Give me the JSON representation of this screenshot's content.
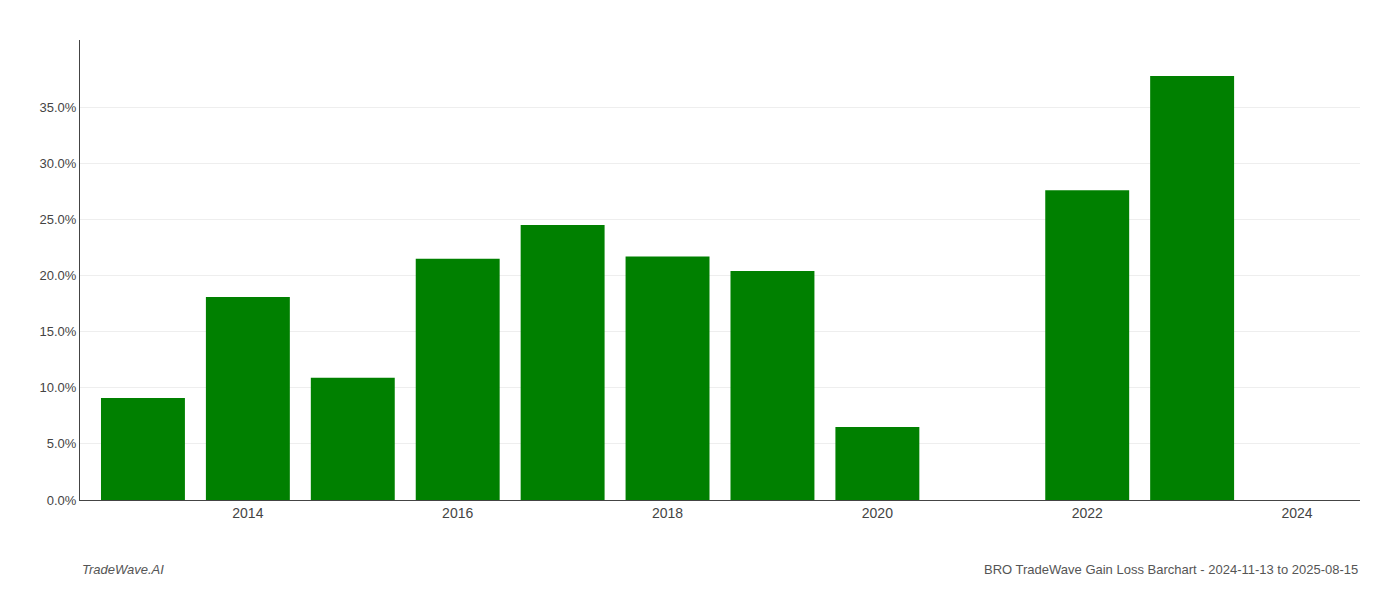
{
  "chart_data": {
    "type": "bar",
    "x": [
      2013,
      2014,
      2015,
      2016,
      2017,
      2018,
      2019,
      2020,
      2022,
      2023
    ],
    "values": [
      0.091,
      0.181,
      0.109,
      0.215,
      0.245,
      0.217,
      0.204,
      0.065,
      0.276,
      0.378
    ],
    "color": "#008000",
    "xlim": [
      2012.4,
      2024.6
    ],
    "xticks": [
      2014,
      2016,
      2018,
      2020,
      2022,
      2024
    ],
    "ylim": [
      0,
      0.41
    ],
    "yticks": [
      {
        "value": 0.0,
        "label": "0.0%"
      },
      {
        "value": 0.05,
        "label": "5.0%"
      },
      {
        "value": 0.1,
        "label": "10.0%"
      },
      {
        "value": 0.15,
        "label": "15.0%"
      },
      {
        "value": 0.2,
        "label": "20.0%"
      },
      {
        "value": 0.25,
        "label": "25.0%"
      },
      {
        "value": 0.3,
        "label": "30.0%"
      },
      {
        "value": 0.35,
        "label": "35.0%"
      }
    ],
    "grid": "y",
    "annotations": [
      "TradeWave.AI",
      "BRO TradeWave Gain Loss Barchart - 2024-11-13 to 2025-08-15"
    ]
  }
}
